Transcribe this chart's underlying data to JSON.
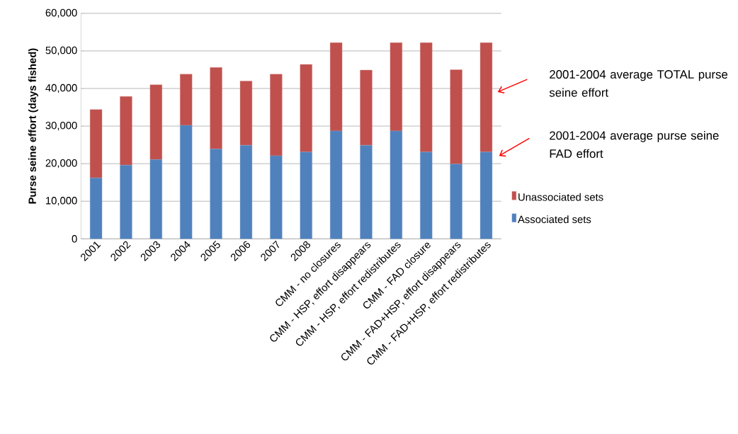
{
  "chart_data": {
    "type": "bar",
    "stacked": true,
    "ylabel": "Purse seine effort (days fished)",
    "categories": [
      "2001",
      "2002",
      "2003",
      "2004",
      "2005",
      "2006",
      "2007",
      "2008",
      "CMM - no closures",
      "CMM - HSP, effort disappears",
      "CMM - HSP, effort redistributes",
      "CMM - FAD closure",
      "CMM - FAD+HSP, effort disappears",
      "CMM - FAD+HSP, effort redistributes"
    ],
    "series": [
      {
        "name": "Associated sets",
        "color": "#4f81bd",
        "values": [
          16200,
          19600,
          21100,
          30200,
          23900,
          24900,
          22100,
          23100,
          28700,
          24900,
          28700,
          23100,
          19900,
          23100
        ]
      },
      {
        "name": "Unassociated sets",
        "color": "#c0504d",
        "values": [
          18200,
          18300,
          19900,
          13600,
          21700,
          17100,
          21700,
          23300,
          23500,
          20000,
          23500,
          29100,
          25100,
          29100
        ]
      }
    ],
    "ylim": [
      0,
      60000
    ],
    "yticks": [
      0,
      {
        "value": 10000,
        "label": "10,000"
      },
      {
        "value": 20000,
        "label": "20,000"
      },
      {
        "value": 30000,
        "label": "30,000"
      },
      {
        "value": 40000,
        "label": "40,000"
      },
      {
        "value": 50000,
        "label": "50,000"
      },
      {
        "value": 60000,
        "label": "60,000"
      }
    ],
    "grid": "y",
    "legend": "right",
    "annotations": [
      "2001-2004 average TOTAL purse seine effort",
      "2001-2004 average purse seine FAD effort"
    ]
  }
}
